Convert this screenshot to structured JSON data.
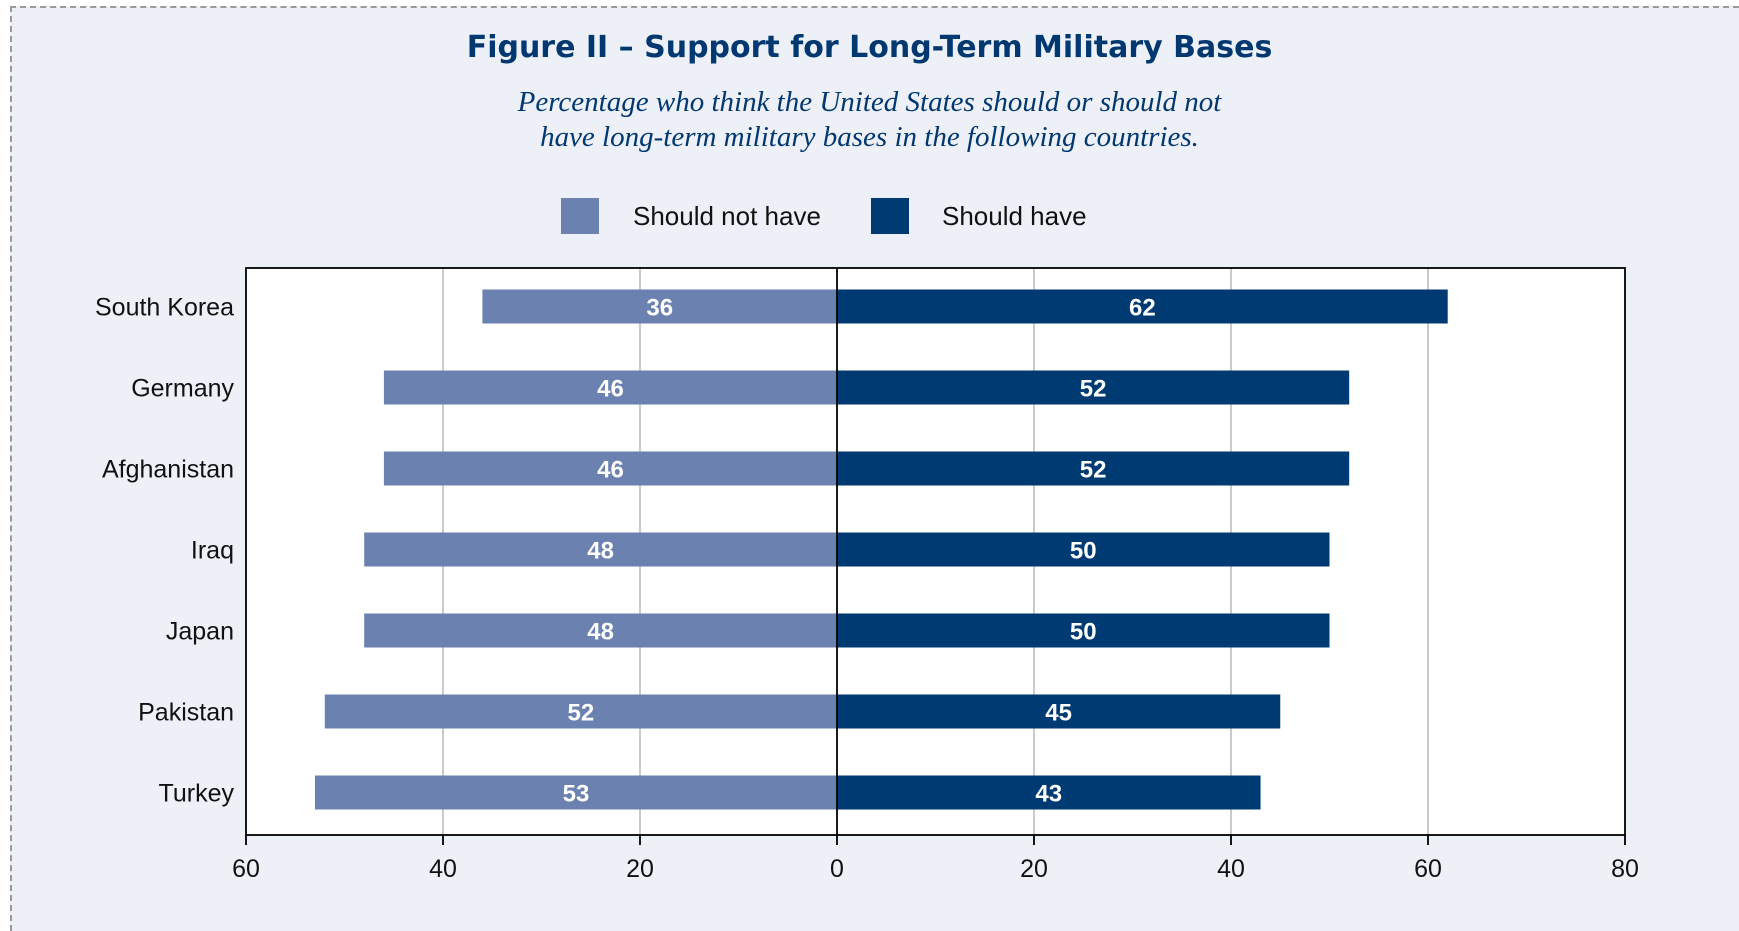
{
  "title": "Figure II – Support for Long-Term Military Bases",
  "subtitle_lines": [
    "Percentage who think the United States should or should not",
    "have long-term military bases in the following countries."
  ],
  "colors": {
    "should_not_have": "#6b82b0",
    "should_have": "#003a72",
    "title": "#00386f",
    "background": "#edf0f7",
    "gridline": "#b8b8b8"
  },
  "chart_data": {
    "type": "bar",
    "orientation": "horizontal-diverging",
    "categories": [
      "South Korea",
      "Germany",
      "Afghanistan",
      "Iraq",
      "Japan",
      "Pakistan",
      "Turkey"
    ],
    "series": [
      {
        "name": "Should not have",
        "direction": "left",
        "values": [
          36,
          46,
          46,
          48,
          48,
          52,
          53
        ]
      },
      {
        "name": "Should have",
        "direction": "right",
        "values": [
          62,
          52,
          52,
          50,
          50,
          45,
          43
        ]
      }
    ],
    "title": "Figure II – Support for Long-Term Military Bases",
    "xlabel": "",
    "ylabel": "",
    "xlim": [
      -60,
      80
    ],
    "x_ticks": [
      -60,
      -40,
      -20,
      0,
      20,
      40,
      60,
      80
    ],
    "x_tick_labels": [
      "60",
      "40",
      "20",
      "0",
      "20",
      "40",
      "60",
      "80"
    ],
    "grid": true,
    "legend_position": "top-center"
  }
}
